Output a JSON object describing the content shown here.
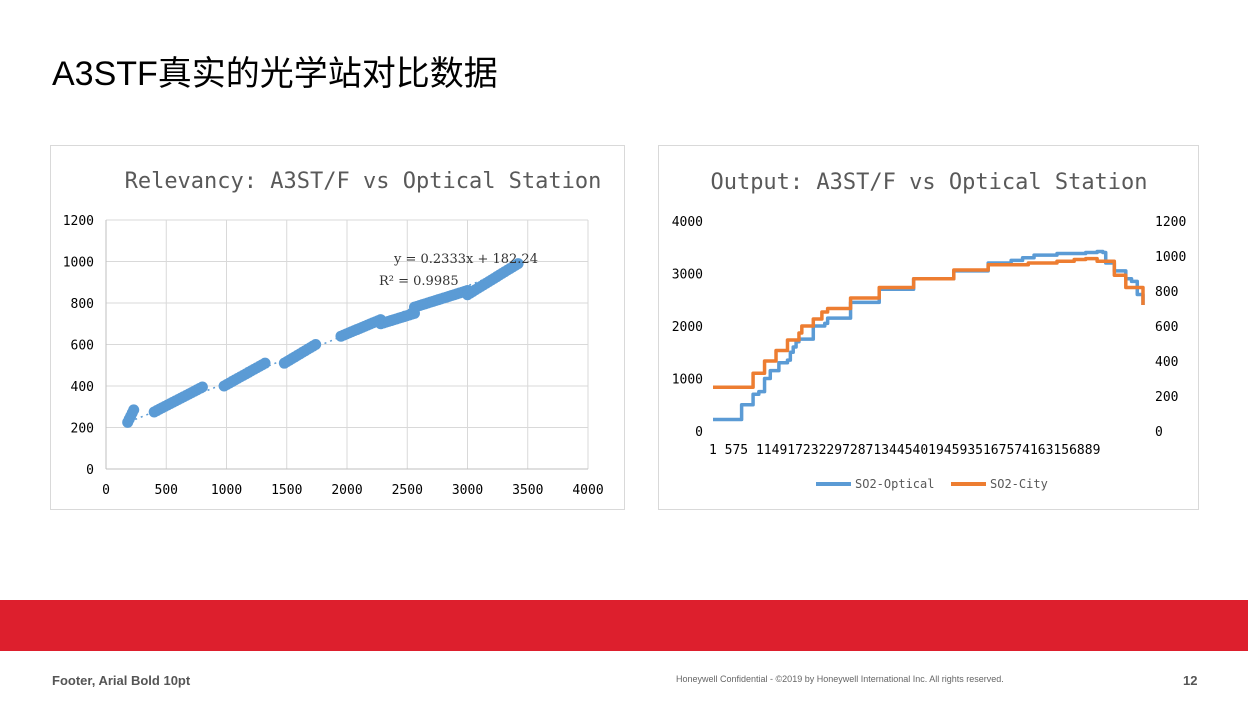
{
  "slide": {
    "title": "A3STF真实的光学站对比数据",
    "footer_left": "Footer, Arial Bold 10pt",
    "footer_center": "Honeywell Confidential - ©2019 by Honeywell International Inc. All rights reserved.",
    "page_number": "12"
  },
  "colors": {
    "blue": "#5b9bd5",
    "orange": "#ed7d31",
    "brand_red": "#dd1f2d",
    "grid": "#d9d9d9"
  },
  "chart_data": [
    {
      "type": "scatter",
      "title": "Relevancy: A3ST/F vs Optical Station",
      "xlabel": "",
      "ylabel": "",
      "xlim": [
        0,
        4000
      ],
      "ylim": [
        0,
        1200
      ],
      "xticks": [
        "0",
        "500",
        "1000",
        "1500",
        "2000",
        "2500",
        "3000",
        "3500",
        "4000"
      ],
      "yticks": [
        "0",
        "200",
        "400",
        "600",
        "800",
        "1000",
        "1200"
      ],
      "grid": true,
      "equation": "y = 0.2333x + 182.24",
      "r_squared": "R² = 0.9985",
      "trendline": {
        "slope": 0.2333,
        "intercept": 182.24
      },
      "segments": [
        {
          "x": [
            180,
            230
          ],
          "y": [
            225,
            285
          ]
        },
        {
          "x": [
            400,
            800
          ],
          "y": [
            275,
            395
          ]
        },
        {
          "x": [
            980,
            1320
          ],
          "y": [
            400,
            510
          ]
        },
        {
          "x": [
            1480,
            1740
          ],
          "y": [
            510,
            600
          ]
        },
        {
          "x": [
            1950,
            2280
          ],
          "y": [
            640,
            720
          ]
        },
        {
          "x": [
            2280,
            2560
          ],
          "y": [
            700,
            750
          ]
        },
        {
          "x": [
            2560,
            3000
          ],
          "y": [
            780,
            860
          ]
        },
        {
          "x": [
            3000,
            3420
          ],
          "y": [
            840,
            990
          ]
        }
      ]
    },
    {
      "type": "line",
      "title": "Output: A3ST/F vs Optical Station",
      "xticks": [
        "1",
        "575",
        "1149",
        "1723",
        "2297",
        "2871",
        "3445",
        "4019",
        "4593",
        "5167",
        "5741",
        "6315",
        "6889"
      ],
      "x_range": [
        1,
        7500
      ],
      "y_left": {
        "range": [
          0,
          4000
        ],
        "ticks": [
          "0",
          "1000",
          "2000",
          "3000",
          "4000"
        ]
      },
      "y_right": {
        "range": [
          0,
          1200
        ],
        "ticks": [
          "0",
          "200",
          "400",
          "600",
          "800",
          "1000",
          "1200"
        ]
      },
      "series": [
        {
          "name": "SO2-Optical",
          "color": "#5b9bd5",
          "x": [
            1,
            480,
            500,
            700,
            800,
            900,
            1000,
            1150,
            1300,
            1350,
            1400,
            1450,
            1500,
            1550,
            1700,
            1750,
            1950,
            2000,
            2400,
            2900,
            3500,
            4200,
            4800,
            5200,
            5400,
            5600,
            6000,
            6500,
            6700,
            6800,
            6850,
            7000,
            7200,
            7300,
            7400,
            7500
          ],
          "y": [
            220,
            220,
            500,
            700,
            750,
            1000,
            1150,
            1300,
            1350,
            1500,
            1600,
            1700,
            1750,
            1750,
            1750,
            2000,
            2050,
            2150,
            2450,
            2700,
            2900,
            3050,
            3200,
            3250,
            3300,
            3350,
            3380,
            3400,
            3420,
            3400,
            3200,
            3050,
            2900,
            2850,
            2600,
            2400
          ]
        },
        {
          "name": "SO2-City",
          "color": "#ed7d31",
          "x": [
            1,
            480,
            700,
            900,
            1100,
            1300,
            1500,
            1550,
            1700,
            1750,
            1900,
            2000,
            2400,
            2900,
            3500,
            4200,
            4800,
            5500,
            6000,
            6300,
            6500,
            6700,
            7000,
            7200,
            7500
          ],
          "y": [
            250,
            250,
            330,
            400,
            460,
            520,
            560,
            600,
            600,
            640,
            680,
            700,
            760,
            820,
            870,
            920,
            950,
            960,
            970,
            980,
            985,
            970,
            890,
            820,
            720
          ]
        }
      ]
    }
  ]
}
